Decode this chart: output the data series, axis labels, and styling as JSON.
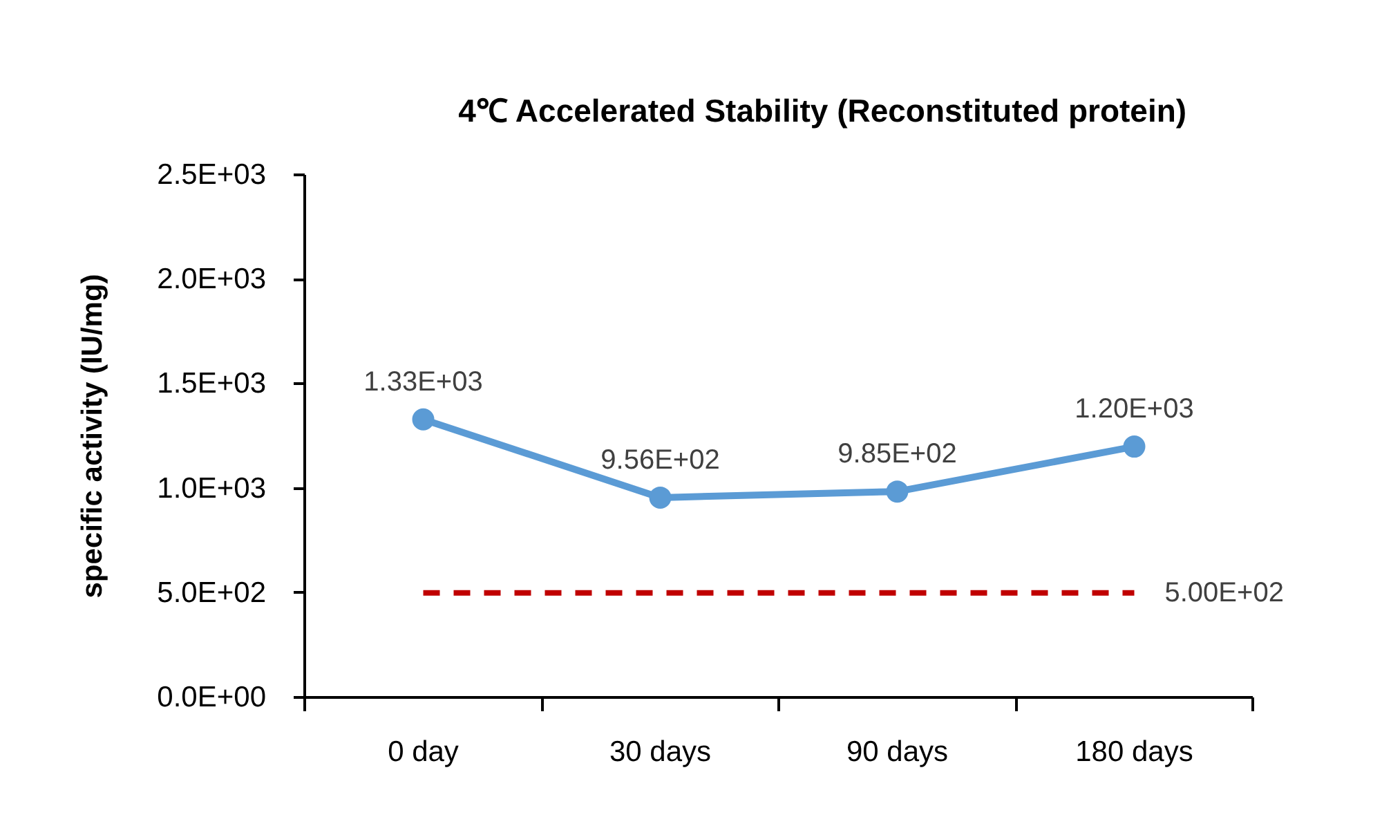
{
  "chart_data": {
    "type": "line",
    "title": "4℃ Accelerated Stability (Reconstituted protein)",
    "ylabel": "specific activity (IU/mg)",
    "categories": [
      "0 day",
      "30 days",
      "90 days",
      "180 days"
    ],
    "ylim": [
      0,
      2500
    ],
    "yticks": [
      {
        "value": 0,
        "label": "0.0E+00"
      },
      {
        "value": 500,
        "label": "5.0E+02"
      },
      {
        "value": 1000,
        "label": "1.0E+03"
      },
      {
        "value": 1500,
        "label": "1.5E+03"
      },
      {
        "value": 2000,
        "label": "2.0E+03"
      },
      {
        "value": 2500,
        "label": "2.5E+03"
      }
    ],
    "grid": false,
    "series": [
      {
        "color": "#5b9bd5",
        "values": [
          1330,
          956,
          985,
          1200
        ],
        "value_labels": [
          "1.33E+03",
          "9.56E+02",
          "9.85E+02",
          "1.20E+03"
        ],
        "marker": "circle",
        "line_style": "solid"
      },
      {
        "color": "#c00000",
        "values": [
          500,
          500,
          500,
          500
        ],
        "value_labels": [
          null,
          null,
          null,
          "5.00E+02"
        ],
        "marker": "none",
        "line_style": "dashed"
      }
    ]
  }
}
